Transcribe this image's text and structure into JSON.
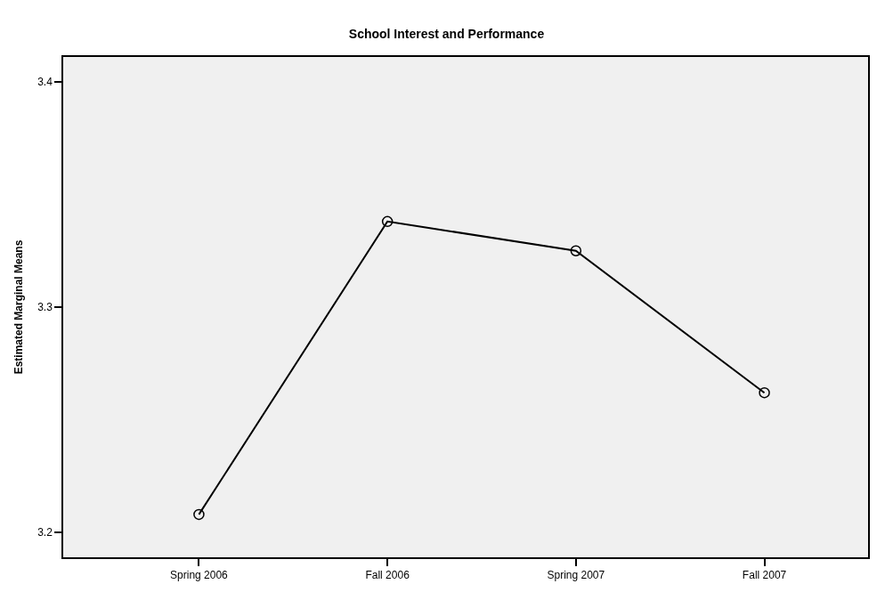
{
  "chart_data": {
    "type": "line",
    "title": "School Interest and Performance",
    "ylabel": "Estimated Marginal Means",
    "categories": [
      "Spring 2006",
      "Fall 2006",
      "Spring 2007",
      "Fall 2007"
    ],
    "series": [
      {
        "color": "#000000",
        "values": [
          3.208,
          3.338,
          3.325,
          3.262
        ]
      }
    ],
    "ylim": [
      3.189,
      3.411
    ],
    "yticks": [
      3.2,
      3.3,
      3.4
    ],
    "grid": false,
    "marker": "circle",
    "line_style": "solid"
  }
}
